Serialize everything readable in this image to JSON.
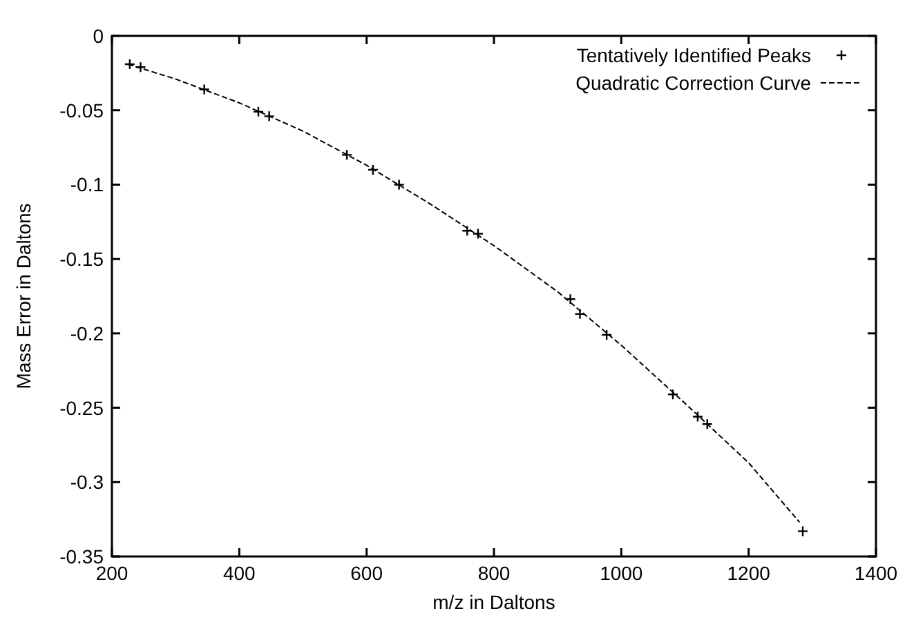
{
  "chart_data": {
    "type": "scatter",
    "xlabel": "m/z in Daltons",
    "ylabel": "Mass Error in Daltons",
    "xlim": [
      200,
      1400
    ],
    "xticks": [
      200,
      400,
      600,
      800,
      1000,
      1200,
      1400
    ],
    "ylim": [
      -0.35,
      0
    ],
    "yticks": [
      -0.35,
      -0.3,
      -0.25,
      -0.2,
      -0.15,
      -0.1,
      -0.05,
      0
    ],
    "grid": false,
    "legend": "top right",
    "series": [
      {
        "name": "Tentatively Identified Peaks",
        "marker": "cross",
        "color": "#000000",
        "x": [
          228,
          245,
          345,
          430,
          447,
          569,
          610,
          651,
          758,
          775,
          920,
          935,
          977,
          1081,
          1120,
          1135,
          1285
        ],
        "values": [
          -0.019,
          -0.021,
          -0.036,
          -0.051,
          -0.054,
          -0.08,
          -0.09,
          -0.1,
          -0.131,
          -0.133,
          -0.177,
          -0.187,
          -0.201,
          -0.241,
          -0.256,
          -0.261,
          -0.333
        ]
      },
      {
        "name": "Quadratic Correction Curve",
        "type": "line",
        "line_style": "dashed",
        "color": "#000000",
        "x": [
          225,
          300,
          400,
          500,
          600,
          700,
          800,
          900,
          1000,
          1100,
          1200,
          1280
        ],
        "values": [
          -0.019,
          -0.029,
          -0.045,
          -0.064,
          -0.087,
          -0.113,
          -0.141,
          -0.172,
          -0.208,
          -0.247,
          -0.287,
          -0.327
        ]
      }
    ]
  }
}
